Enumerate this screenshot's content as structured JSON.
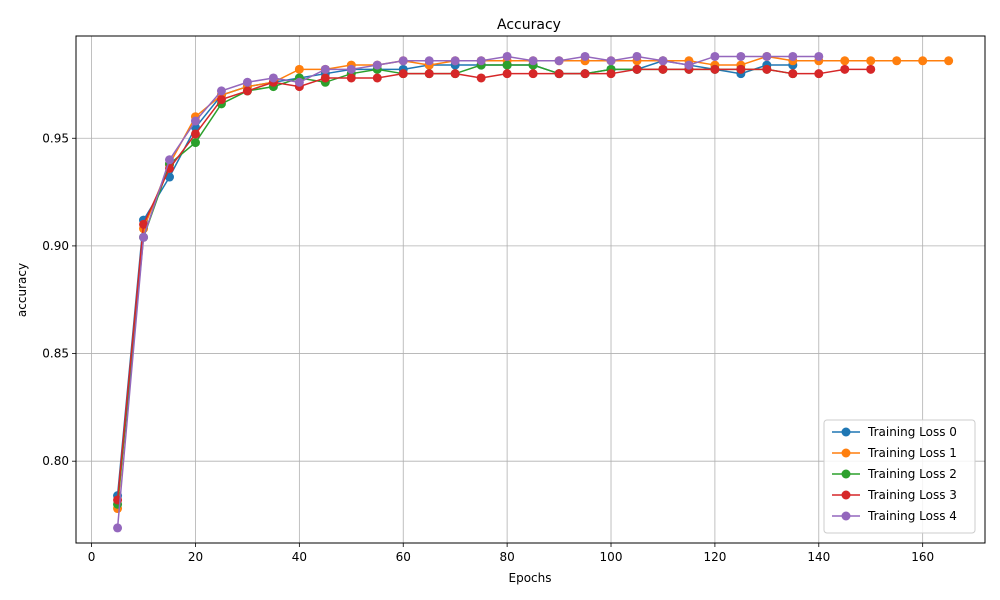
{
  "chart_data": {
    "type": "line",
    "title": "Accuracy",
    "xlabel": "Epochs",
    "ylabel": "accuracy",
    "xlim": [
      -3,
      172
    ],
    "ylim": [
      0.762,
      0.9975
    ],
    "xticks": [
      0,
      20,
      40,
      60,
      80,
      100,
      120,
      140,
      160
    ],
    "yticks": [
      0.8,
      0.85,
      0.9,
      0.95
    ],
    "ytick_labels": [
      "0.80",
      "0.85",
      "0.90",
      "0.95"
    ],
    "grid": true,
    "legend_position": "lower-right",
    "series": [
      {
        "name": "Training Loss 0",
        "color": "#1f77b4",
        "x": [
          5,
          10,
          15,
          20,
          25,
          30,
          35,
          40,
          45,
          50,
          55,
          60,
          65,
          70,
          75,
          80,
          85,
          90,
          95,
          100,
          105,
          110,
          115,
          120,
          125,
          130,
          135
        ],
        "values": [
          0.784,
          0.912,
          0.932,
          0.955,
          0.97,
          0.974,
          0.976,
          0.978,
          0.98,
          0.982,
          0.982,
          0.982,
          0.984,
          0.984,
          0.984,
          0.984,
          0.984,
          0.98,
          0.98,
          0.982,
          0.982,
          0.986,
          0.984,
          0.982,
          0.98,
          0.984,
          0.984
        ]
      },
      {
        "name": "Training Loss 1",
        "color": "#ff7f0e",
        "x": [
          5,
          10,
          15,
          20,
          25,
          30,
          35,
          40,
          45,
          50,
          55,
          60,
          65,
          70,
          75,
          80,
          85,
          90,
          95,
          100,
          105,
          110,
          115,
          120,
          125,
          130,
          135,
          140,
          145,
          150,
          155,
          160,
          165
        ],
        "values": [
          0.778,
          0.908,
          0.938,
          0.96,
          0.97,
          0.974,
          0.976,
          0.982,
          0.982,
          0.984,
          0.984,
          0.986,
          0.984,
          0.986,
          0.986,
          0.986,
          0.986,
          0.986,
          0.986,
          0.986,
          0.986,
          0.986,
          0.986,
          0.984,
          0.984,
          0.988,
          0.986,
          0.986,
          0.986,
          0.986,
          0.986,
          0.986,
          0.986
        ]
      },
      {
        "name": "Training Loss 2",
        "color": "#2ca02c",
        "x": [
          5,
          10,
          15,
          20,
          25,
          30,
          35,
          40,
          45,
          50,
          55,
          60,
          65,
          70,
          75,
          80,
          85,
          90,
          95,
          100,
          105,
          110,
          115,
          120,
          125,
          130,
          135
        ],
        "values": [
          0.78,
          0.904,
          0.938,
          0.948,
          0.966,
          0.972,
          0.974,
          0.978,
          0.976,
          0.98,
          0.982,
          0.98,
          0.98,
          0.98,
          0.984,
          0.984,
          0.984,
          0.98,
          0.98,
          0.982,
          0.982,
          0.982,
          0.982,
          0.982,
          0.982,
          0.982,
          0.98
        ]
      },
      {
        "name": "Training Loss 3",
        "color": "#d62728",
        "x": [
          5,
          10,
          15,
          20,
          25,
          30,
          35,
          40,
          45,
          50,
          55,
          60,
          65,
          70,
          75,
          80,
          85,
          90,
          95,
          100,
          105,
          110,
          115,
          120,
          125,
          130,
          135,
          140,
          145,
          150
        ],
        "values": [
          0.782,
          0.91,
          0.936,
          0.952,
          0.968,
          0.972,
          0.976,
          0.974,
          0.978,
          0.978,
          0.978,
          0.98,
          0.98,
          0.98,
          0.978,
          0.98,
          0.98,
          0.98,
          0.98,
          0.98,
          0.982,
          0.982,
          0.982,
          0.982,
          0.982,
          0.982,
          0.98,
          0.98,
          0.982,
          0.982
        ]
      },
      {
        "name": "Training Loss 4",
        "color": "#9467bd",
        "x": [
          5,
          10,
          15,
          20,
          25,
          30,
          35,
          40,
          45,
          50,
          55,
          60,
          65,
          70,
          75,
          80,
          85,
          90,
          95,
          100,
          105,
          110,
          115,
          120,
          125,
          130,
          135,
          140
        ],
        "values": [
          0.769,
          0.904,
          0.94,
          0.958,
          0.972,
          0.976,
          0.978,
          0.976,
          0.982,
          0.982,
          0.984,
          0.986,
          0.986,
          0.986,
          0.986,
          0.988,
          0.986,
          0.986,
          0.988,
          0.986,
          0.988,
          0.986,
          0.984,
          0.988,
          0.988,
          0.988,
          0.988,
          0.988
        ]
      }
    ]
  }
}
